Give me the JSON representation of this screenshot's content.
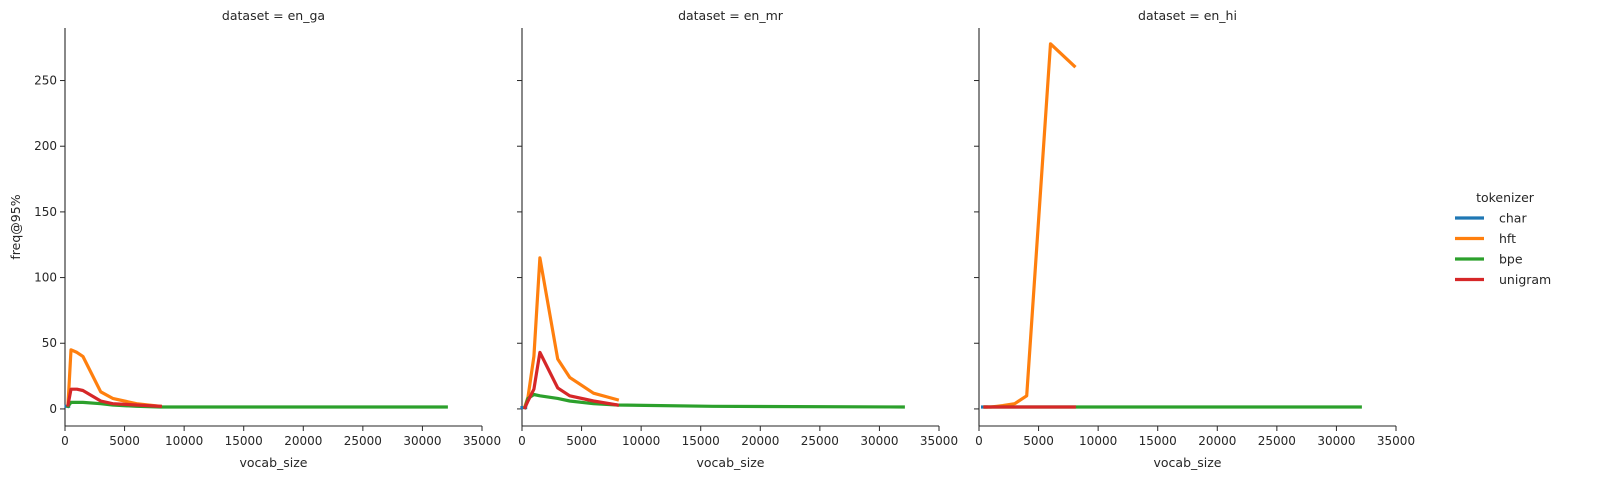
{
  "chart_data": {
    "type": "line",
    "facet_label_prefix": "dataset = ",
    "xlabel": "vocab_size",
    "ylabel": "freq@95%",
    "xlim": [
      0,
      35000
    ],
    "ylim": [
      -13,
      290
    ],
    "xticks": [
      0,
      5000,
      10000,
      15000,
      20000,
      25000,
      30000,
      35000
    ],
    "yticks": [
      0,
      50,
      100,
      150,
      200,
      250
    ],
    "grid": false,
    "legend": {
      "title": "tokenizer",
      "position": "right",
      "entries": [
        "char",
        "hft",
        "bpe",
        "unigram"
      ]
    },
    "colors": {
      "char": "#1f77b4",
      "hft": "#ff7f0e",
      "bpe": "#2ca02c",
      "unigram": "#d62728"
    },
    "panels": [
      {
        "dataset": "en_ga",
        "series": [
          {
            "name": "char",
            "points": [
              [
                100,
                2
              ],
              [
                300,
                2
              ]
            ]
          },
          {
            "name": "hft",
            "points": [
              [
                250,
                3
              ],
              [
                500,
                45
              ],
              [
                1000,
                43
              ],
              [
                1500,
                40
              ],
              [
                3000,
                13
              ],
              [
                4000,
                8
              ],
              [
                6000,
                4
              ],
              [
                8000,
                2
              ]
            ]
          },
          {
            "name": "bpe",
            "points": [
              [
                250,
                2
              ],
              [
                500,
                5
              ],
              [
                1000,
                5
              ],
              [
                1500,
                5
              ],
              [
                3000,
                4
              ],
              [
                4000,
                3
              ],
              [
                6000,
                2
              ],
              [
                8000,
                1.5
              ],
              [
                16000,
                1.5
              ],
              [
                32000,
                1.5
              ]
            ]
          },
          {
            "name": "unigram",
            "points": [
              [
                250,
                3
              ],
              [
                500,
                15
              ],
              [
                1000,
                15
              ],
              [
                1500,
                14
              ],
              [
                3000,
                6
              ],
              [
                4000,
                4
              ],
              [
                6000,
                3
              ],
              [
                8000,
                2
              ]
            ]
          }
        ]
      },
      {
        "dataset": "en_mr",
        "series": [
          {
            "name": "char",
            "points": [
              [
                0,
                1
              ],
              [
                300,
                1
              ]
            ]
          },
          {
            "name": "hft",
            "points": [
              [
                250,
                2
              ],
              [
                500,
                9
              ],
              [
                1000,
                40
              ],
              [
                1500,
                115
              ],
              [
                3000,
                38
              ],
              [
                4000,
                24
              ],
              [
                6000,
                12
              ],
              [
                8000,
                7
              ]
            ]
          },
          {
            "name": "bpe",
            "points": [
              [
                250,
                1
              ],
              [
                500,
                8
              ],
              [
                1000,
                11
              ],
              [
                1500,
                10
              ],
              [
                3000,
                8
              ],
              [
                4000,
                6
              ],
              [
                6000,
                4
              ],
              [
                8000,
                3
              ],
              [
                16000,
                2
              ],
              [
                32000,
                1.5
              ]
            ]
          },
          {
            "name": "unigram",
            "points": [
              [
                250,
                1
              ],
              [
                500,
                6
              ],
              [
                1000,
                15
              ],
              [
                1500,
                43
              ],
              [
                3000,
                16
              ],
              [
                4000,
                10
              ],
              [
                6000,
                6
              ],
              [
                8000,
                3
              ]
            ]
          }
        ]
      },
      {
        "dataset": "en_hi",
        "series": [
          {
            "name": "char",
            "points": [
              [
                300,
                1.5
              ],
              [
                600,
                1.5
              ]
            ]
          },
          {
            "name": "hft",
            "points": [
              [
                500,
                1.5
              ],
              [
                1000,
                1.5
              ],
              [
                1500,
                2
              ],
              [
                2000,
                2.5
              ],
              [
                3000,
                4
              ],
              [
                4000,
                10
              ],
              [
                6000,
                278
              ],
              [
                8000,
                261
              ]
            ]
          },
          {
            "name": "bpe",
            "points": [
              [
                500,
                1.5
              ],
              [
                8000,
                1.5
              ],
              [
                16000,
                1.5
              ],
              [
                32000,
                1.5
              ]
            ]
          },
          {
            "name": "unigram",
            "points": [
              [
                500,
                1.5
              ],
              [
                1000,
                1.5
              ],
              [
                2000,
                1.5
              ],
              [
                4000,
                1.5
              ],
              [
                8000,
                1.5
              ]
            ]
          }
        ]
      }
    ]
  }
}
